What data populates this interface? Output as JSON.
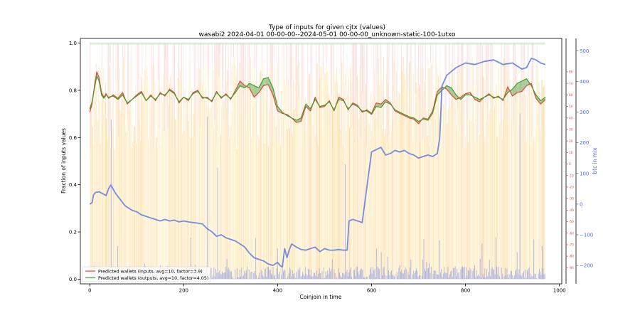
{
  "chart_data": {
    "type": "line",
    "title": "Type of inputs for given cjtx (values)",
    "subtitle": "wasabi2 2024-04-01 00-00-00--2024-05-01 00-00-00_unknown-static-100-1utxo",
    "xlabel": "Coinjoin in time",
    "ylabel": "Fraction of inputs values",
    "y2label": "",
    "y3label": "btc in mix",
    "xlim": [
      -20,
      1005
    ],
    "ylim": [
      -0.02,
      1.02
    ],
    "y2lim": [
      -104,
      109
    ],
    "y3lim": [
      -260,
      540
    ],
    "x_ticks": [
      0,
      200,
      400,
      600,
      800,
      1000
    ],
    "y_ticks": [
      0.0,
      0.2,
      0.4,
      0.6,
      0.8,
      1.0
    ],
    "y2_ticks": [
      -90,
      -80,
      -70,
      -60,
      -50,
      -40,
      -30,
      -20,
      -10,
      0,
      10,
      20,
      30,
      40,
      50,
      60,
      70,
      80
    ],
    "y3_ticks": [
      -200,
      -100,
      0,
      100,
      200,
      300,
      400,
      500
    ],
    "legend_position": "lower-left",
    "grid": false,
    "series": [
      {
        "name": "Predicted wallets (inputs, avg=10, factor=3.9)",
        "color": "#e8463a",
        "axis": "right-red",
        "x": [
          0,
          5,
          10,
          15,
          20,
          25,
          30,
          35,
          40,
          50,
          60,
          70,
          80,
          90,
          100,
          110,
          120,
          130,
          140,
          150,
          160,
          170,
          180,
          190,
          200,
          210,
          220,
          230,
          240,
          250,
          260,
          270,
          280,
          290,
          300,
          310,
          320,
          330,
          340,
          350,
          360,
          370,
          380,
          390,
          400,
          410,
          420,
          430,
          440,
          450,
          460,
          470,
          480,
          490,
          500,
          510,
          520,
          530,
          540,
          550,
          560,
          570,
          580,
          590,
          600,
          610,
          620,
          630,
          640,
          650,
          660,
          670,
          680,
          690,
          700,
          710,
          720,
          730,
          740,
          750,
          760,
          770,
          780,
          790,
          800,
          810,
          820,
          830,
          840,
          850,
          860,
          870,
          880,
          890,
          900,
          910,
          920,
          930,
          940,
          950,
          960,
          970
        ],
        "values": [
          45,
          52,
          68,
          80,
          75,
          62,
          58,
          61,
          57,
          60,
          57,
          62,
          52,
          56,
          60,
          63,
          55,
          60,
          55,
          62,
          59,
          65,
          62,
          53,
          58,
          55,
          62,
          64,
          57,
          58,
          54,
          63,
          57,
          61,
          56,
          64,
          72,
          68,
          66,
          58,
          62,
          68,
          69,
          60,
          46,
          44,
          43,
          40,
          36,
          37,
          50,
          46,
          58,
          49,
          50,
          55,
          46,
          58,
          56,
          47,
          53,
          51,
          45,
          47,
          44,
          53,
          52,
          56,
          53,
          46,
          44,
          42,
          40,
          39,
          35,
          40,
          39,
          46,
          63,
          67,
          65,
          60,
          56,
          58,
          61,
          62,
          56,
          54,
          58,
          61,
          57,
          59,
          55,
          67,
          59,
          62,
          63,
          68,
          70,
          57,
          52,
          56
        ]
      },
      {
        "name": "Predicted wallets (outputs, avg=10, factor=4.05)",
        "color": "#3f9e35",
        "axis": "right-red",
        "x": [
          0,
          5,
          10,
          15,
          20,
          25,
          30,
          35,
          40,
          50,
          60,
          70,
          80,
          90,
          100,
          110,
          120,
          130,
          140,
          150,
          160,
          170,
          180,
          190,
          200,
          210,
          220,
          230,
          240,
          250,
          260,
          270,
          280,
          290,
          300,
          310,
          320,
          330,
          340,
          350,
          360,
          370,
          380,
          390,
          400,
          410,
          420,
          430,
          440,
          450,
          460,
          470,
          480,
          490,
          500,
          510,
          520,
          530,
          540,
          550,
          560,
          570,
          580,
          590,
          600,
          610,
          620,
          630,
          640,
          650,
          660,
          670,
          680,
          690,
          700,
          710,
          720,
          730,
          740,
          750,
          760,
          770,
          780,
          790,
          800,
          810,
          820,
          830,
          840,
          850,
          860,
          870,
          880,
          890,
          900,
          910,
          920,
          930,
          940,
          950,
          960,
          970
        ],
        "values": [
          48,
          54,
          66,
          76,
          72,
          60,
          57,
          60,
          58,
          59,
          56,
          60,
          53,
          56,
          59,
          62,
          55,
          59,
          56,
          61,
          60,
          64,
          61,
          54,
          58,
          56,
          61,
          63,
          58,
          57,
          55,
          62,
          58,
          60,
          57,
          62,
          68,
          66,
          70,
          68,
          66,
          74,
          75,
          66,
          50,
          45,
          42,
          40,
          38,
          40,
          52,
          48,
          56,
          50,
          51,
          54,
          47,
          56,
          55,
          48,
          52,
          50,
          46,
          46,
          43,
          50,
          49,
          54,
          52,
          47,
          45,
          43,
          41,
          40,
          37,
          39,
          38,
          44,
          60,
          64,
          68,
          66,
          60,
          56,
          60,
          60,
          58,
          56,
          58,
          60,
          58,
          58,
          56,
          62,
          65,
          70,
          72,
          74,
          68,
          60,
          55,
          58
        ]
      },
      {
        "name": "",
        "color": "#5b7be0",
        "axis": "btc",
        "x": [
          0,
          5,
          8,
          12,
          20,
          30,
          35,
          40,
          45,
          55,
          65,
          75,
          80,
          90,
          100,
          110,
          120,
          130,
          140,
          150,
          160,
          170,
          180,
          190,
          200,
          210,
          220,
          230,
          240,
          250,
          260,
          270,
          280,
          290,
          300,
          310,
          320,
          330,
          340,
          350,
          360,
          370,
          380,
          390,
          400,
          405,
          410,
          415,
          420,
          425,
          430,
          440,
          450,
          460,
          470,
          480,
          490,
          500,
          510,
          520,
          530,
          540,
          548,
          552,
          560,
          580,
          600,
          620,
          630,
          640,
          650,
          660,
          670,
          680,
          690,
          700,
          710,
          720,
          730,
          740,
          745,
          750,
          760,
          780,
          800,
          820,
          840,
          860,
          880,
          900,
          920,
          930,
          940,
          950,
          960,
          970
        ],
        "values": [
          0,
          5,
          30,
          38,
          40,
          32,
          28,
          50,
          62,
          35,
          15,
          -5,
          -10,
          -20,
          -25,
          -35,
          -40,
          -45,
          -50,
          -55,
          -50,
          -55,
          -52,
          -58,
          -55,
          -58,
          -60,
          -62,
          -65,
          -80,
          -90,
          -105,
          -100,
          -110,
          -115,
          -120,
          -130,
          -140,
          -160,
          -175,
          -180,
          -185,
          -195,
          -200,
          -190,
          -200,
          -205,
          -145,
          -175,
          -148,
          -130,
          -140,
          -148,
          -150,
          -145,
          -140,
          -155,
          -145,
          -150,
          -150,
          -148,
          -150,
          -150,
          -55,
          -50,
          -60,
          170,
          185,
          160,
          165,
          175,
          170,
          175,
          165,
          160,
          150,
          155,
          160,
          155,
          165,
          215,
          385,
          420,
          445,
          460,
          455,
          465,
          470,
          455,
          460,
          440,
          445,
          475,
          470,
          460,
          455
        ]
      }
    ]
  }
}
